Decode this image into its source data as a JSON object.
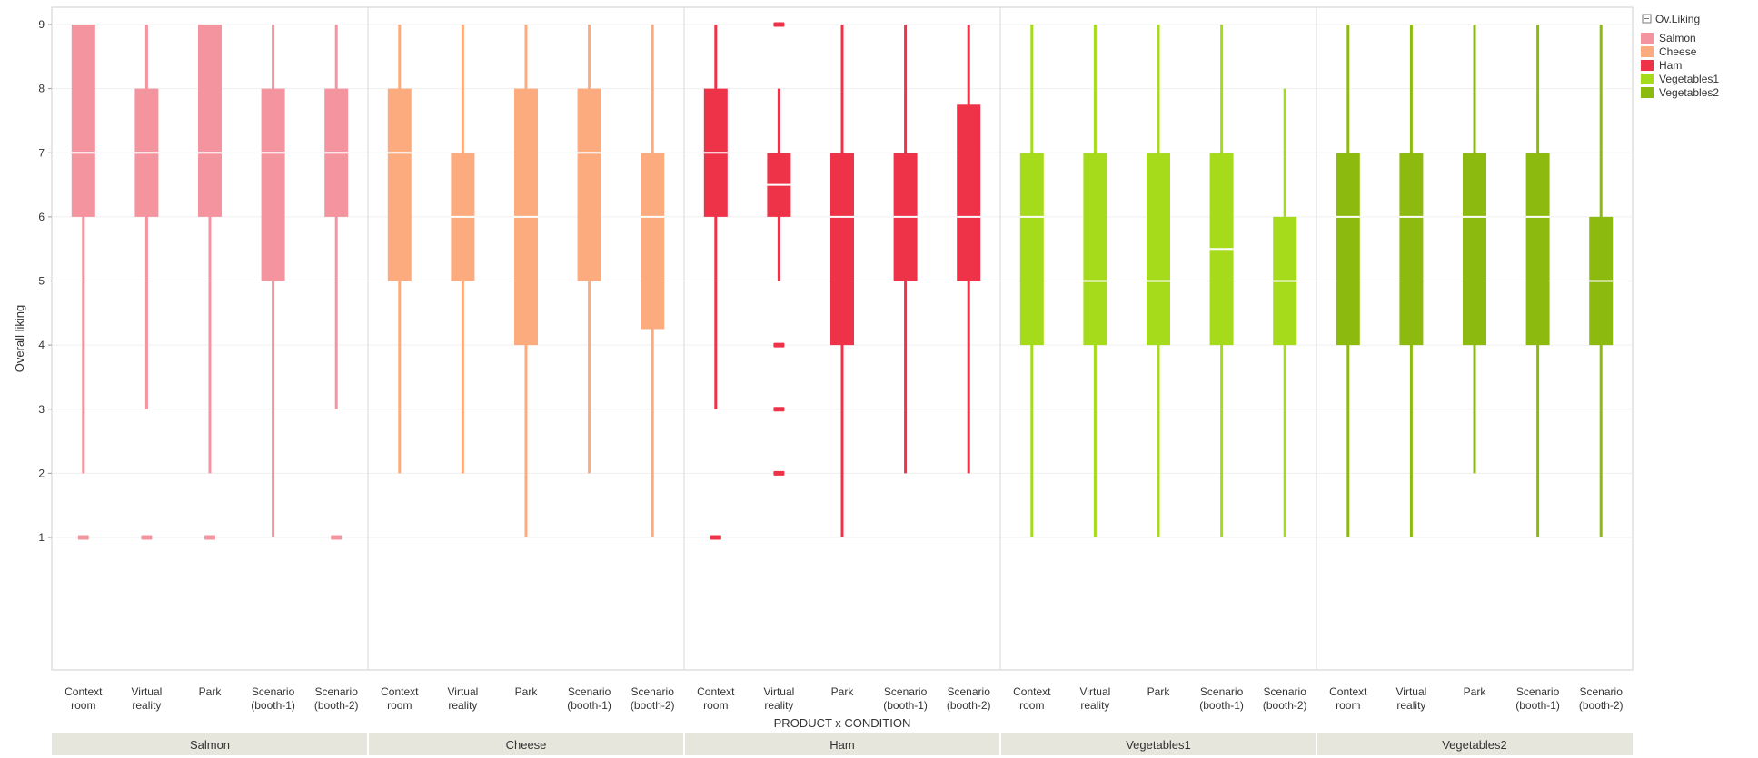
{
  "chart_data": {
    "type": "boxplot",
    "ylabel": "Overall liking",
    "xlabel": "PRODUCT x CONDITION",
    "ylim": [
      1,
      9
    ],
    "yticks": [
      1,
      2,
      3,
      4,
      5,
      6,
      7,
      8,
      9
    ],
    "legend_title": "Ov.Liking",
    "legend_position": "right",
    "condition_labels": [
      [
        "Context",
        "room"
      ],
      [
        "Virtual",
        "reality"
      ],
      [
        "Park"
      ],
      [
        "Scenario",
        "(booth-1)"
      ],
      [
        "Scenario",
        "(booth-2)"
      ]
    ],
    "groups": [
      {
        "name": "Salmon",
        "color": "#F4949F",
        "boxes": [
          {
            "min": 2,
            "q1": 6,
            "median": 7,
            "q3": 9,
            "max": 9,
            "outliers": [
              1
            ]
          },
          {
            "min": 3,
            "q1": 6,
            "median": 7,
            "q3": 8,
            "max": 9,
            "outliers": [
              1
            ]
          },
          {
            "min": 2,
            "q1": 6,
            "median": 7,
            "q3": 9,
            "max": 9,
            "outliers": [
              1
            ]
          },
          {
            "min": 1,
            "q1": 5,
            "median": 7,
            "q3": 8,
            "max": 9,
            "outliers": []
          },
          {
            "min": 3,
            "q1": 6,
            "median": 7,
            "q3": 8,
            "max": 9,
            "outliers": [
              1
            ]
          }
        ]
      },
      {
        "name": "Cheese",
        "color": "#FBAB7D",
        "boxes": [
          {
            "min": 2,
            "q1": 5,
            "median": 7,
            "q3": 8,
            "max": 9,
            "outliers": []
          },
          {
            "min": 2,
            "q1": 5,
            "median": 6,
            "q3": 7,
            "max": 9,
            "outliers": []
          },
          {
            "min": 1,
            "q1": 4,
            "median": 6,
            "q3": 8,
            "max": 9,
            "outliers": []
          },
          {
            "min": 2,
            "q1": 5,
            "median": 7,
            "q3": 8,
            "max": 9,
            "outliers": []
          },
          {
            "min": 1,
            "q1": 4.25,
            "median": 6,
            "q3": 7,
            "max": 9,
            "outliers": []
          }
        ]
      },
      {
        "name": "Ham",
        "color": "#EE3348",
        "boxes": [
          {
            "min": 3,
            "q1": 6,
            "median": 7,
            "q3": 8,
            "max": 9,
            "outliers": [
              1
            ]
          },
          {
            "min": 5,
            "q1": 6,
            "median": 6.5,
            "q3": 7,
            "max": 8,
            "outliers": [
              9,
              4,
              3,
              2
            ]
          },
          {
            "min": 1,
            "q1": 4,
            "median": 6,
            "q3": 7,
            "max": 9,
            "outliers": []
          },
          {
            "min": 2,
            "q1": 5,
            "median": 6,
            "q3": 7,
            "max": 9,
            "outliers": []
          },
          {
            "min": 2,
            "q1": 5,
            "median": 6,
            "q3": 7.75,
            "max": 9,
            "outliers": []
          }
        ]
      },
      {
        "name": "Vegetables1",
        "color": "#A6DB1B",
        "boxes": [
          {
            "min": 1,
            "q1": 4,
            "median": 6,
            "q3": 7,
            "max": 9,
            "outliers": []
          },
          {
            "min": 1,
            "q1": 4,
            "median": 5,
            "q3": 7,
            "max": 9,
            "outliers": []
          },
          {
            "min": 1,
            "q1": 4,
            "median": 5,
            "q3": 7,
            "max": 9,
            "outliers": []
          },
          {
            "min": 1,
            "q1": 4,
            "median": 5.5,
            "q3": 7,
            "max": 9,
            "outliers": []
          },
          {
            "min": 1,
            "q1": 4,
            "median": 5,
            "q3": 6,
            "max": 8,
            "outliers": []
          }
        ]
      },
      {
        "name": "Vegetables2",
        "color": "#8DBA0E",
        "boxes": [
          {
            "min": 1,
            "q1": 4,
            "median": 6,
            "q3": 7,
            "max": 9,
            "outliers": []
          },
          {
            "min": 1,
            "q1": 4,
            "median": 6,
            "q3": 7,
            "max": 9,
            "outliers": []
          },
          {
            "min": 2,
            "q1": 4,
            "median": 6,
            "q3": 7,
            "max": 9,
            "outliers": []
          },
          {
            "min": 1,
            "q1": 4,
            "median": 6,
            "q3": 7,
            "max": 9,
            "outliers": []
          },
          {
            "min": 1,
            "q1": 4,
            "median": 5,
            "q3": 6,
            "max": 9,
            "outliers": []
          }
        ]
      }
    ]
  }
}
